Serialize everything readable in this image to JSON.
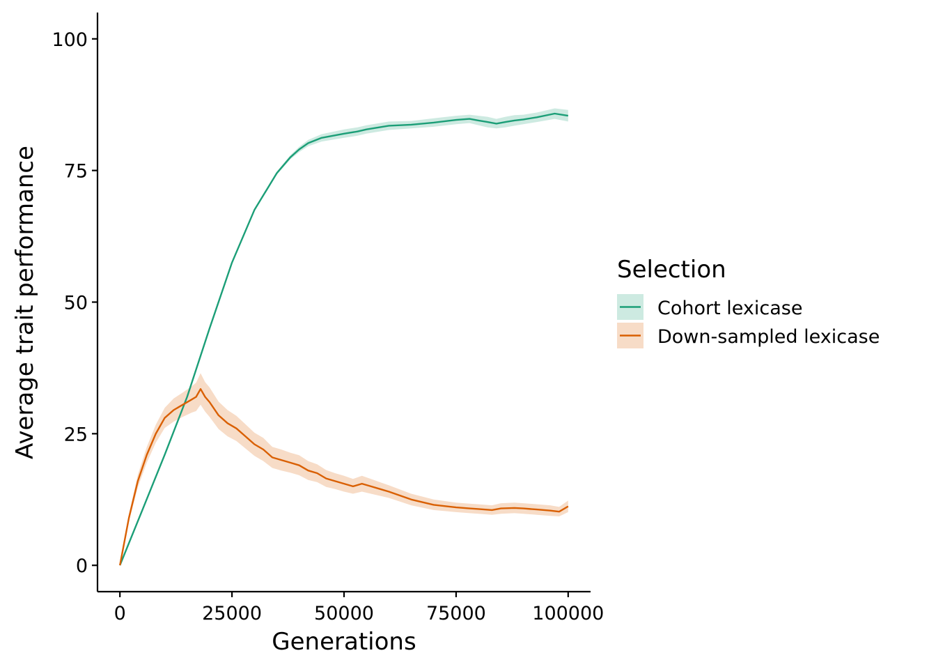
{
  "chart_data": {
    "type": "line",
    "title": "",
    "xlabel": "Generations",
    "ylabel": "Average trait performance",
    "xlim": [
      -5000,
      105000
    ],
    "ylim": [
      -5,
      105
    ],
    "x_ticks": [
      0,
      25000,
      50000,
      75000,
      100000
    ],
    "x_tick_labels": [
      "0",
      "25000",
      "50000",
      "75000",
      "100000"
    ],
    "y_ticks": [
      0,
      25,
      50,
      75,
      100
    ],
    "y_tick_labels": [
      "0",
      "25",
      "50",
      "75",
      "100"
    ],
    "grid": false,
    "legend": {
      "title": "Selection",
      "position": "right"
    },
    "series": [
      {
        "name": "Cohort lexicase",
        "color": "#1b9e77",
        "ribbon_color": "#1b9e77",
        "x": [
          0,
          5000,
          10000,
          15000,
          20000,
          25000,
          30000,
          35000,
          38000,
          40000,
          42000,
          45000,
          50000,
          53000,
          55000,
          60000,
          65000,
          70000,
          75000,
          78000,
          80000,
          82000,
          84000,
          86000,
          88000,
          90000,
          93000,
          97000,
          100000
        ],
        "y": [
          0,
          10.5,
          21,
          32,
          45,
          57.5,
          67.5,
          74.5,
          77.5,
          79,
          80.2,
          81.2,
          82,
          82.4,
          82.8,
          83.5,
          83.7,
          84.1,
          84.6,
          84.8,
          84.5,
          84.2,
          83.9,
          84.2,
          84.5,
          84.7,
          85.1,
          85.8,
          85.4
        ],
        "lower": [
          0,
          10.3,
          20.8,
          31.8,
          44.8,
          57.3,
          67.3,
          74.2,
          77.1,
          78.5,
          79.6,
          80.5,
          81.2,
          81.6,
          82,
          82.7,
          83,
          83.3,
          83.8,
          84,
          83.6,
          83.2,
          83,
          83.2,
          83.5,
          83.8,
          84.2,
          84.8,
          84.3
        ],
        "upper": [
          0,
          10.7,
          21.2,
          32.2,
          45.2,
          57.7,
          67.7,
          74.8,
          77.9,
          79.5,
          80.8,
          81.9,
          82.8,
          83.2,
          83.6,
          84.3,
          84.4,
          84.9,
          85.4,
          85.6,
          85.4,
          85.2,
          84.8,
          85.2,
          85.5,
          85.6,
          86,
          86.8,
          86.5
        ]
      },
      {
        "name": "Down-sampled lexicase",
        "color": "#d95f02",
        "ribbon_color": "#d95f02",
        "x": [
          0,
          2000,
          4000,
          6000,
          8000,
          10000,
          12000,
          14000,
          16000,
          17000,
          18000,
          19000,
          20000,
          22000,
          24000,
          26000,
          28000,
          30000,
          32000,
          34000,
          36000,
          38000,
          40000,
          42000,
          44000,
          46000,
          48000,
          50000,
          52000,
          54000,
          56000,
          58000,
          60000,
          65000,
          70000,
          75000,
          78000,
          80000,
          83000,
          85000,
          88000,
          90000,
          93000,
          96000,
          98000,
          100000
        ],
        "y": [
          0,
          9,
          16,
          21,
          25,
          28,
          29.5,
          30.5,
          31.5,
          32,
          33.5,
          32,
          31,
          28.5,
          27,
          26,
          24.5,
          23,
          22,
          20.5,
          20,
          19.5,
          19,
          18,
          17.5,
          16.5,
          16,
          15.5,
          15,
          15.5,
          15,
          14.5,
          14,
          12.5,
          11.5,
          11,
          10.8,
          10.7,
          10.5,
          10.8,
          10.9,
          10.8,
          10.6,
          10.4,
          10.2,
          11.2
        ],
        "lower": [
          0,
          8.3,
          14.8,
          19.5,
          23.3,
          26.1,
          27.3,
          28.2,
          29,
          29.3,
          30.5,
          29.2,
          28.2,
          25.9,
          24.5,
          23.6,
          22.2,
          20.8,
          19.8,
          18.5,
          18,
          17.6,
          17.1,
          16.2,
          15.8,
          14.9,
          14.5,
          14,
          13.6,
          14,
          13.6,
          13.2,
          12.8,
          11.4,
          10.5,
          10.1,
          9.9,
          9.8,
          9.6,
          9.8,
          9.9,
          9.8,
          9.6,
          9.4,
          9.3,
          10.1
        ],
        "upper": [
          0,
          9.7,
          17.2,
          22.5,
          26.7,
          29.9,
          31.7,
          32.8,
          34,
          34.7,
          36.5,
          34.8,
          33.8,
          31.1,
          29.5,
          28.4,
          26.8,
          25.2,
          24.2,
          22.5,
          22,
          21.4,
          20.9,
          19.8,
          19.2,
          18.1,
          17.5,
          17,
          16.4,
          17,
          16.4,
          15.8,
          15.2,
          13.6,
          12.5,
          11.9,
          11.7,
          11.6,
          11.4,
          11.8,
          11.9,
          11.8,
          11.6,
          11.4,
          11.1,
          12.3
        ]
      }
    ]
  }
}
